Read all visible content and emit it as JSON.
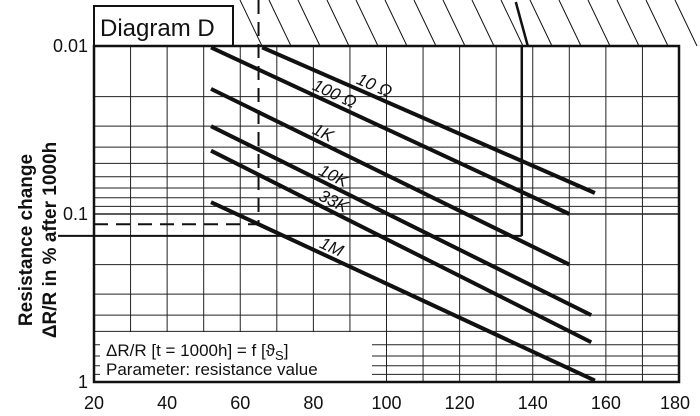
{
  "chart_data": {
    "type": "line",
    "title": "Diagram D",
    "xlabel": "",
    "ylabel": [
      "Resistance change",
      "ΔR/R in % after 1000h"
    ],
    "x_scale": "linear",
    "y_scale": "log",
    "y_inverted": true,
    "xlim": [
      20,
      180
    ],
    "ylim": [
      0.01,
      1
    ],
    "x_ticks": [
      20,
      40,
      60,
      80,
      100,
      120,
      140,
      160,
      180
    ],
    "y_ticks": [
      0.01,
      0.1,
      1
    ],
    "y_tick_labels": [
      "0.01",
      "0.1",
      "1"
    ],
    "grid": true,
    "legend": "none",
    "series": [
      {
        "name": "10 Ω",
        "points": [
          [
            66,
            0.0102
          ],
          [
            157,
            0.075
          ]
        ]
      },
      {
        "name": "100 Ω",
        "points": [
          [
            52,
            0.0102
          ],
          [
            150,
            0.1
          ]
        ]
      },
      {
        "name": "1K",
        "points": [
          [
            52,
            0.018
          ],
          [
            150,
            0.2
          ]
        ]
      },
      {
        "name": "10K",
        "points": [
          [
            52,
            0.03
          ],
          [
            156,
            0.4
          ]
        ]
      },
      {
        "name": "33K",
        "points": [
          [
            52,
            0.042
          ],
          [
            156,
            0.58
          ]
        ]
      },
      {
        "name": "1M",
        "points": [
          [
            52,
            0.085
          ],
          [
            157,
            0.98
          ]
        ]
      }
    ],
    "annotations": {
      "line1": "ΔR/R [t = 1000h] = f [ϑ",
      "line1_sub": "S",
      "line1_end": "]",
      "line2": "Parameter: resistance value"
    },
    "reference_lines": {
      "dashed_horizontal_y": 0.115,
      "solid_horizontal_y": 0.135,
      "dashed_vertical_x": 65,
      "solid_vertical_x": 137
    }
  },
  "colors": {
    "line": "#111111",
    "grid": "#222222",
    "background": "#ffffff"
  }
}
